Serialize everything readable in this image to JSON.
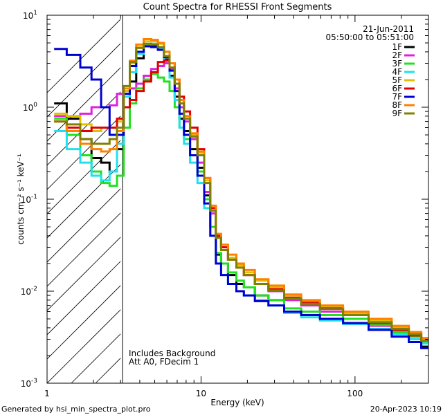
{
  "chart_data": {
    "type": "line",
    "title": "Count Spectra for RHESSI Front Segments",
    "xlabel": "Energy (keV)",
    "ylabel": "counts cm⁻² s⁻¹ keV⁻¹",
    "xscale": "log",
    "yscale": "log",
    "xlim": [
      1,
      300
    ],
    "ylim": [
      0.001,
      10
    ],
    "x_ticks": [
      {
        "value": 1,
        "label": "1"
      },
      {
        "value": 10,
        "label": "10"
      },
      {
        "value": 100,
        "label": "100"
      }
    ],
    "y_ticks": [
      {
        "value": 0.001,
        "base": "10",
        "exp": "-3"
      },
      {
        "value": 0.01,
        "base": "10",
        "exp": "-2"
      },
      {
        "value": 0.1,
        "base": "10",
        "exp": "-1"
      },
      {
        "value": 1,
        "base": "10",
        "exp": "0"
      },
      {
        "value": 10,
        "base": "10",
        "exp": "1"
      }
    ],
    "excluded_region": {
      "from": 1,
      "to": 3
    },
    "date": "21-Jun-2011",
    "time_range": "05:50:00 to 05:51:00",
    "notes": [
      "Includes Background",
      "Att A0, FDecim 1"
    ],
    "series": [
      {
        "name": "1F",
        "color": "#000000"
      },
      {
        "name": "2F",
        "color": "#e020e0"
      },
      {
        "name": "3F",
        "color": "#20e020"
      },
      {
        "name": "4F",
        "color": "#20e0f0"
      },
      {
        "name": "5F",
        "color": "#e0c000"
      },
      {
        "name": "6F",
        "color": "#e00000"
      },
      {
        "name": "7F",
        "color": "#0000d0"
      },
      {
        "name": "8F",
        "color": "#ff8000"
      },
      {
        "name": "9F",
        "color": "#808000"
      }
    ],
    "energy_bins": [
      1.2,
      1.5,
      1.8,
      2.1,
      2.4,
      2.7,
      3.0,
      3.3,
      3.6,
      4.0,
      4.5,
      5.0,
      5.5,
      6.0,
      6.5,
      7.0,
      7.5,
      8.0,
      9.0,
      10.0,
      11.0,
      12.0,
      13.0,
      14.0,
      16.0,
      18.0,
      20.0,
      25.0,
      30.0,
      40.0,
      50.0,
      70.0,
      100.0,
      150.0,
      200.0,
      250.0,
      290.0
    ],
    "series_values": {
      "1F": [
        1.1,
        0.75,
        0.45,
        0.28,
        0.25,
        0.2,
        0.35,
        1.0,
        1.9,
        3.4,
        4.6,
        4.7,
        4.3,
        3.3,
        2.2,
        1.3,
        0.75,
        0.55,
        0.35,
        0.22,
        0.11,
        0.05,
        0.025,
        0.02,
        0.015,
        0.012,
        0.011,
        0.009,
        0.008,
        0.006,
        0.0055,
        0.005,
        0.0045,
        0.0038,
        0.0034,
        0.003,
        0.0025
      ],
      "2F": [
        0.8,
        0.8,
        0.85,
        1.0,
        1.0,
        1.05,
        1.4,
        1.5,
        1.6,
        1.8,
        2.2,
        2.6,
        2.8,
        3.0,
        2.6,
        1.6,
        1.0,
        0.7,
        0.45,
        0.25,
        0.12,
        0.07,
        0.04,
        0.03,
        0.022,
        0.018,
        0.015,
        0.012,
        0.01,
        0.008,
        0.007,
        0.006,
        0.005,
        0.0042,
        0.0036,
        0.0032,
        0.003
      ],
      "3F": [
        0.75,
        0.5,
        0.3,
        0.2,
        0.15,
        0.14,
        0.18,
        0.6,
        1.1,
        1.6,
        2.0,
        2.3,
        2.1,
        1.9,
        1.5,
        1.0,
        0.6,
        0.45,
        0.3,
        0.2,
        0.1,
        0.05,
        0.026,
        0.02,
        0.016,
        0.013,
        0.011,
        0.009,
        0.008,
        0.0065,
        0.006,
        0.0055,
        0.005,
        0.0043,
        0.0036,
        0.0032,
        0.0028
      ],
      "4F": [
        0.55,
        0.35,
        0.25,
        0.18,
        0.16,
        0.2,
        0.4,
        1.3,
        2.4,
        3.8,
        4.8,
        4.9,
        4.4,
        3.2,
        2.1,
        1.2,
        0.6,
        0.4,
        0.25,
        0.15,
        0.08,
        0.04,
        0.02,
        0.015,
        0.012,
        0.01,
        0.009,
        0.008,
        0.007,
        0.0058,
        0.0052,
        0.0048,
        0.0044,
        0.0039,
        0.0034,
        0.003,
        0.0027
      ],
      "5F": [
        0.85,
        0.8,
        0.65,
        0.55,
        0.6,
        0.6,
        0.7,
        1.5,
        3.0,
        4.5,
        5.2,
        5.2,
        4.9,
        4.0,
        3.0,
        2.0,
        1.2,
        0.8,
        0.5,
        0.32,
        0.16,
        0.08,
        0.04,
        0.03,
        0.023,
        0.019,
        0.016,
        0.013,
        0.011,
        0.009,
        0.0078,
        0.0068,
        0.0058,
        0.0048,
        0.004,
        0.0035,
        0.003
      ],
      "6F": [
        0.7,
        0.6,
        0.55,
        0.6,
        0.6,
        0.6,
        0.75,
        1.0,
        1.2,
        1.5,
        1.9,
        2.4,
        3.1,
        3.2,
        3.0,
        2.0,
        1.3,
        0.9,
        0.6,
        0.35,
        0.17,
        0.08,
        0.04,
        0.03,
        0.022,
        0.018,
        0.015,
        0.012,
        0.0105,
        0.0085,
        0.0075,
        0.0065,
        0.0055,
        0.0045,
        0.0038,
        0.0033,
        0.0029
      ],
      "7F": [
        4.3,
        3.7,
        2.7,
        2.0,
        1.0,
        0.5,
        0.5,
        1.4,
        2.8,
        4.0,
        4.6,
        4.5,
        4.2,
        3.5,
        2.5,
        1.5,
        0.85,
        0.5,
        0.3,
        0.18,
        0.09,
        0.04,
        0.02,
        0.015,
        0.012,
        0.01,
        0.009,
        0.0078,
        0.007,
        0.006,
        0.0055,
        0.005,
        0.0045,
        0.0038,
        0.0032,
        0.0028,
        0.0024
      ],
      "8F": [
        0.7,
        0.55,
        0.4,
        0.35,
        0.33,
        0.35,
        0.55,
        1.6,
        3.2,
        4.8,
        5.5,
        5.4,
        5.0,
        4.0,
        3.0,
        2.0,
        1.2,
        0.8,
        0.52,
        0.33,
        0.17,
        0.085,
        0.042,
        0.032,
        0.025,
        0.02,
        0.017,
        0.0135,
        0.0115,
        0.0092,
        0.008,
        0.007,
        0.006,
        0.005,
        0.0042,
        0.0036,
        0.0031
      ],
      "9F": [
        0.7,
        0.65,
        0.45,
        0.4,
        0.4,
        0.45,
        0.6,
        1.7,
        3.1,
        4.4,
        4.9,
        4.8,
        4.5,
        3.6,
        2.7,
        1.8,
        1.1,
        0.75,
        0.48,
        0.3,
        0.15,
        0.075,
        0.038,
        0.028,
        0.022,
        0.018,
        0.015,
        0.012,
        0.0102,
        0.0083,
        0.0073,
        0.0064,
        0.0055,
        0.0046,
        0.0039,
        0.0034,
        0.0029
      ]
    }
  },
  "footer": {
    "generated_by": "Generated by hsi_min_spectra_plot.pro",
    "timestamp": "20-Apr-2023 10:19"
  }
}
